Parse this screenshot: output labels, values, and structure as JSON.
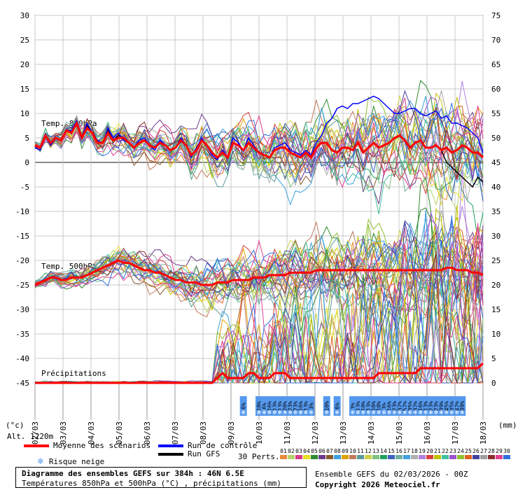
{
  "chart_data": {
    "type": "line",
    "title": "Diagramme des ensembles GEFS sur 384h : 46N 6.5E",
    "subtitle": "Températures 850hPa et 500hPa (°C) , précipitations (mm)",
    "left_axis": {
      "label": "(°c)",
      "min": -45,
      "max": 30,
      "ticks": [
        30,
        25,
        20,
        15,
        10,
        5,
        0,
        -5,
        -10,
        -15,
        -20,
        -25,
        -30,
        -35,
        -40,
        -45
      ]
    },
    "right_axis": {
      "label": "(mm)",
      "min": 0,
      "max": 75,
      "ticks": [
        75,
        70,
        65,
        60,
        55,
        50,
        45,
        40,
        35,
        30,
        25,
        20,
        15,
        10,
        5,
        0
      ]
    },
    "x_labels": [
      "02/03",
      "03/03",
      "04/03",
      "05/03",
      "06/03",
      "07/03",
      "08/03",
      "09/03",
      "10/03",
      "11/03",
      "12/03",
      "13/03",
      "14/03",
      "15/03",
      "16/03",
      "17/03",
      "18/03"
    ],
    "altitude_label": "Alt. 1220m",
    "panel_labels": {
      "t850": "Temp. 850hPa",
      "t500": "Temp. 500hPa",
      "precip": "Précipitations"
    },
    "snow_risk": {
      "start_step": 40,
      "values": [
        "6%",
        "",
        "",
        "10%",
        "6%",
        "16%",
        "13%",
        "13%",
        "20%",
        "23%",
        "23%",
        "16%",
        "13%",
        "3%",
        "",
        "",
        "10%",
        "",
        "6%",
        "",
        "",
        "3%",
        "13%",
        "10%",
        "13%",
        "10%",
        "10%",
        "3%",
        "16%",
        "23%",
        "32%",
        "52%",
        "35%",
        "32%",
        "16%",
        "13%",
        "23%",
        "23%",
        "39%",
        "45%",
        "35%",
        "42%",
        "39%"
      ],
      "color": "#5599ee"
    },
    "series_t850_mean": [
      3.5,
      3,
      5.5,
      4,
      5,
      4.5,
      6.5,
      6,
      8,
      5,
      7,
      6,
      4,
      4,
      6,
      4.5,
      5,
      5,
      4,
      3,
      4,
      4.5,
      3.5,
      3,
      4,
      3.5,
      2.5,
      3,
      4.5,
      3.5,
      1.5,
      2.5,
      4.5,
      3.5,
      2,
      1,
      2,
      1,
      4,
      3.5,
      2.5,
      4,
      3,
      2,
      1.5,
      1,
      2.5,
      3,
      3,
      2,
      1.5,
      1,
      2,
      1,
      3,
      4,
      4,
      2.5,
      2,
      3,
      3,
      2.5,
      4,
      2,
      3,
      4,
      3,
      3.5,
      4,
      5,
      5.5,
      4.5,
      3,
      4,
      4.5,
      3,
      3,
      3.5,
      2.5,
      3,
      2,
      2.5,
      3.5,
      3,
      2,
      2,
      1
    ],
    "series_t850_control": [
      3,
      2.5,
      5.5,
      3.5,
      5,
      4.5,
      6.5,
      6.5,
      8.5,
      5,
      8,
      6,
      4.5,
      4,
      7,
      5,
      6,
      4.5,
      4,
      3,
      4.5,
      5,
      3.5,
      2.5,
      4.5,
      3.5,
      2.5,
      3,
      5,
      3.5,
      1,
      3,
      5,
      3.5,
      1.5,
      0.5,
      2.5,
      1,
      5,
      4,
      2.5,
      5,
      3.5,
      2,
      1.5,
      1,
      3,
      3.5,
      4,
      2.5,
      2,
      1.5,
      2.5,
      1.5,
      4,
      5.5,
      8,
      9,
      11,
      11.5,
      11,
      12,
      12,
      12.5,
      13,
      13.5,
      13,
      12,
      11,
      10,
      10,
      10.5,
      11,
      11,
      10,
      9.5,
      10,
      10.5,
      9,
      9.5,
      8,
      8,
      7.5,
      7,
      6,
      5,
      2
    ],
    "series_t850_gfs": [
      3,
      2.5,
      5.5,
      4,
      5,
      4.5,
      6.5,
      6,
      8,
      5,
      7.5,
      6,
      4,
      4,
      6.5,
      4.5,
      5.5,
      5,
      4,
      3,
      4,
      4.5,
      3.5,
      3,
      4,
      3.5,
      2.5,
      3,
      4.5,
      3.5,
      1.5,
      2.5,
      4.5,
      3.5,
      2,
      1,
      2,
      1,
      4,
      3.5,
      2.5,
      4,
      3,
      2,
      1.5,
      1,
      2.5,
      3,
      3,
      2,
      1.5,
      1,
      2,
      1,
      3,
      4,
      4,
      2.5,
      2,
      3,
      3,
      2.5,
      4,
      2,
      3,
      4,
      3,
      3.5,
      4,
      5,
      5.5,
      4.5,
      3,
      4,
      4.5,
      3,
      3,
      3.5,
      2.5,
      0,
      -1,
      -2,
      -3,
      -4,
      -5,
      -3,
      -4
    ],
    "series_t500_mean": [
      -25,
      -24.5,
      -24,
      -23.5,
      -23.5,
      -24,
      -24,
      -23.5,
      -23.5,
      -23.5,
      -23,
      -22.5,
      -22,
      -21.5,
      -21,
      -20.5,
      -20,
      -20.5,
      -20.5,
      -21,
      -21.5,
      -22,
      -22,
      -22.5,
      -22.5,
      -23,
      -23.5,
      -24,
      -24,
      -24.5,
      -24.5,
      -24.5,
      -25,
      -25,
      -25,
      -24.5,
      -24.5,
      -24.5,
      -24,
      -24,
      -24,
      -24,
      -23.5,
      -23.5,
      -23.5,
      -23,
      -23,
      -23,
      -23,
      -22.5,
      -22.5,
      -22.5,
      -22.5,
      -22.5,
      -22,
      -22,
      -22,
      -22,
      -22,
      -22,
      -22,
      -22,
      -22,
      -22,
      -22,
      -22,
      -22,
      -22,
      -22,
      -22,
      -22,
      -22,
      -22,
      -22,
      -22,
      -22,
      -22,
      -22,
      -22,
      -21.5,
      -21.5,
      -22,
      -22,
      -22,
      -22.5,
      -22.5,
      -23
    ],
    "series_precip_mean": [
      0,
      0,
      0,
      0,
      0,
      0,
      0,
      0,
      0,
      0,
      0,
      0,
      0,
      0,
      0,
      0,
      0,
      0,
      0,
      0,
      0,
      0,
      0,
      0,
      0,
      0,
      0,
      0,
      0,
      0,
      0,
      0,
      0,
      0,
      0,
      1,
      2,
      1,
      1,
      1,
      1,
      2,
      2,
      1,
      1,
      1,
      2,
      2,
      2,
      1,
      1,
      1,
      1,
      1,
      1,
      1,
      1,
      1,
      1,
      1,
      1,
      1,
      1,
      1,
      1,
      1,
      2,
      2,
      2,
      2,
      2,
      2,
      2,
      2,
      3,
      3,
      3,
      3,
      3,
      3,
      3,
      3,
      3,
      3,
      3,
      3,
      4
    ],
    "legend": {
      "mean": {
        "label": "Moyenne des scénarios",
        "color": "#ff0000"
      },
      "control": {
        "label": "Run de contrôle",
        "color": "#0000ff"
      },
      "gfs": {
        "label": "Run GFS",
        "color": "#000000"
      },
      "snow": {
        "label": "Risque neige",
        "color": "#5599ee"
      },
      "perturbations": {
        "label": "30 Perts.",
        "ids": [
          "01",
          "02",
          "03",
          "04",
          "05",
          "06",
          "07",
          "08",
          "09",
          "10",
          "11",
          "12",
          "13",
          "14",
          "15",
          "16",
          "17",
          "18",
          "19",
          "20",
          "21",
          "22",
          "23",
          "24",
          "25",
          "26",
          "27",
          "28",
          "29",
          "30"
        ],
        "colors": [
          "#e88a3a",
          "#b5d36a",
          "#d93a8a",
          "#e8e020",
          "#2d8a2d",
          "#6b3a8a",
          "#8a5a2d",
          "#3aa0e0",
          "#e0a000",
          "#c07a5a",
          "#5a9a9a",
          "#d0d04a",
          "#80c080",
          "#20a060",
          "#4060c0",
          "#70b0a0",
          "#40a0e0",
          "#b0b0b0",
          "#b080e0",
          "#d84040",
          "#c0c000",
          "#40c0a0",
          "#a050d0",
          "#90c030",
          "#e06020",
          "#4040a0",
          "#a0a0a0",
          "#8a2d2d",
          "#e04090",
          "#3070e0"
        ]
      }
    }
  },
  "footer": {
    "title": "Diagramme des ensembles GEFS sur 384h : 46N 6.5E",
    "subtitle": "Températures 850hPa et 500hPa (°C) , précipitations (mm)",
    "run_info": "Ensemble GEFS du 02/03/2026 - 00Z",
    "copyright": "Copyright 2026 Meteociel.fr"
  }
}
